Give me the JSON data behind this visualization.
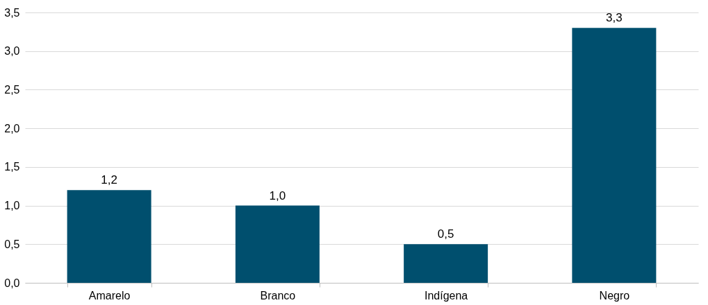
{
  "chart_data": {
    "type": "bar",
    "categories": [
      "Amarelo",
      "Branco",
      "Indígena",
      "Negro"
    ],
    "values": [
      1.2,
      1.0,
      0.5,
      3.3
    ],
    "value_labels": [
      "1,2",
      "1,0",
      "0,5",
      "3,3"
    ],
    "color": "#004f6e",
    "ylim": [
      0,
      3.5
    ],
    "yticks": [
      {
        "value": 0,
        "label": "0,0"
      },
      {
        "value": 0.5,
        "label": "0,5"
      },
      {
        "value": 1,
        "label": "1,0"
      },
      {
        "value": 1.5,
        "label": "1,5"
      },
      {
        "value": 2,
        "label": "2,0"
      },
      {
        "value": 2.5,
        "label": "2,5"
      },
      {
        "value": 3,
        "label": "3,0"
      },
      {
        "value": 3.5,
        "label": "3,5"
      }
    ],
    "grid": "y"
  }
}
